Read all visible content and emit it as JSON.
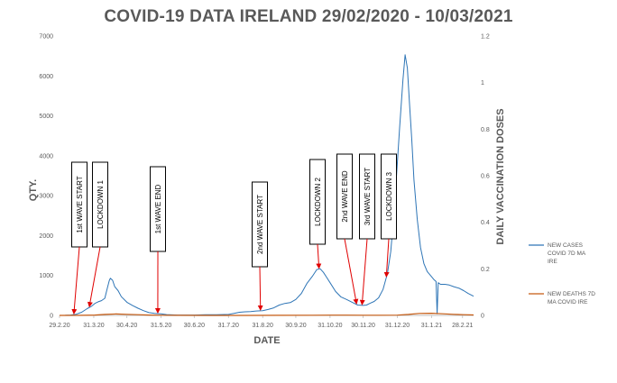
{
  "chart_data": {
    "type": "line",
    "title": "COVID-19 DATA IRELAND 29/02/2020 - 10/03/2021",
    "xlabel": "DATE",
    "ylabel": "QTY.",
    "y2label": "DAILY VACCINATION DOSES",
    "ylim": [
      0,
      7000
    ],
    "y2lim": [
      0,
      1.2
    ],
    "yticks": [
      "0",
      "1000",
      "2000",
      "3000",
      "4000",
      "5000",
      "6000",
      "7000"
    ],
    "y2ticks": [
      "0",
      "0.2",
      "0.4",
      "0.6",
      "0.8",
      "1",
      "1.2"
    ],
    "x_range": [
      "2020-02-29",
      "2021-03-10"
    ],
    "xticks": [
      {
        "label": "29.2.20",
        "date": "2020-02-29"
      },
      {
        "label": "31.3.20",
        "date": "2020-03-31"
      },
      {
        "label": "30.4.20",
        "date": "2020-04-30"
      },
      {
        "label": "31.5.20",
        "date": "2020-05-31"
      },
      {
        "label": "30.6.20",
        "date": "2020-06-30"
      },
      {
        "label": "31.7.20",
        "date": "2020-07-31"
      },
      {
        "label": "31.8.20",
        "date": "2020-08-31"
      },
      {
        "label": "30.9.20",
        "date": "2020-09-30"
      },
      {
        "label": "31.10.20",
        "date": "2020-10-31"
      },
      {
        "label": "30.11.20",
        "date": "2020-11-30"
      },
      {
        "label": "31.12.20",
        "date": "2020-12-31"
      },
      {
        "label": "31.1.21",
        "date": "2021-01-31"
      },
      {
        "label": "28.2.21",
        "date": "2021-02-28"
      }
    ],
    "grid": false,
    "legend_position": "right",
    "series": [
      {
        "name": "NEW CASES COVID 7D MA IRE",
        "color": "#2e75b6",
        "points": [
          [
            "2020-02-29",
            0
          ],
          [
            "2020-03-05",
            3
          ],
          [
            "2020-03-10",
            10
          ],
          [
            "2020-03-15",
            30
          ],
          [
            "2020-03-20",
            80
          ],
          [
            "2020-03-25",
            170
          ],
          [
            "2020-03-29",
            230
          ],
          [
            "2020-04-01",
            300
          ],
          [
            "2020-04-04",
            340
          ],
          [
            "2020-04-07",
            370
          ],
          [
            "2020-04-10",
            430
          ],
          [
            "2020-04-12",
            650
          ],
          [
            "2020-04-14",
            870
          ],
          [
            "2020-04-15",
            930
          ],
          [
            "2020-04-17",
            880
          ],
          [
            "2020-04-19",
            720
          ],
          [
            "2020-04-22",
            620
          ],
          [
            "2020-04-25",
            470
          ],
          [
            "2020-04-30",
            330
          ],
          [
            "2020-05-05",
            250
          ],
          [
            "2020-05-10",
            180
          ],
          [
            "2020-05-15",
            120
          ],
          [
            "2020-05-20",
            70
          ],
          [
            "2020-05-25",
            50
          ],
          [
            "2020-05-31",
            40
          ],
          [
            "2020-06-05",
            20
          ],
          [
            "2020-06-10",
            14
          ],
          [
            "2020-06-15",
            10
          ],
          [
            "2020-06-20",
            9
          ],
          [
            "2020-06-30",
            9
          ],
          [
            "2020-07-10",
            15
          ],
          [
            "2020-07-20",
            15
          ],
          [
            "2020-07-31",
            25
          ],
          [
            "2020-08-05",
            50
          ],
          [
            "2020-08-10",
            80
          ],
          [
            "2020-08-15",
            90
          ],
          [
            "2020-08-20",
            95
          ],
          [
            "2020-08-25",
            110
          ],
          [
            "2020-08-31",
            120
          ],
          [
            "2020-09-05",
            150
          ],
          [
            "2020-09-10",
            190
          ],
          [
            "2020-09-15",
            260
          ],
          [
            "2020-09-20",
            300
          ],
          [
            "2020-09-25",
            320
          ],
          [
            "2020-09-30",
            400
          ],
          [
            "2020-10-05",
            550
          ],
          [
            "2020-10-10",
            800
          ],
          [
            "2020-10-15",
            980
          ],
          [
            "2020-10-19",
            1150
          ],
          [
            "2020-10-22",
            1170
          ],
          [
            "2020-10-25",
            1080
          ],
          [
            "2020-10-28",
            950
          ],
          [
            "2020-10-31",
            820
          ],
          [
            "2020-11-05",
            600
          ],
          [
            "2020-11-10",
            460
          ],
          [
            "2020-11-15",
            400
          ],
          [
            "2020-11-20",
            330
          ],
          [
            "2020-11-25",
            260
          ],
          [
            "2020-11-30",
            250
          ],
          [
            "2020-12-03",
            260
          ],
          [
            "2020-12-06",
            300
          ],
          [
            "2020-12-10",
            350
          ],
          [
            "2020-12-14",
            440
          ],
          [
            "2020-12-18",
            650
          ],
          [
            "2020-12-22",
            1050
          ],
          [
            "2020-12-25",
            1600
          ],
          [
            "2020-12-28",
            2600
          ],
          [
            "2020-12-30",
            3400
          ],
          [
            "2021-01-02",
            4700
          ],
          [
            "2021-01-05",
            5900
          ],
          [
            "2021-01-07",
            6530
          ],
          [
            "2021-01-09",
            6200
          ],
          [
            "2021-01-11",
            5300
          ],
          [
            "2021-01-13",
            4400
          ],
          [
            "2021-01-15",
            3400
          ],
          [
            "2021-01-18",
            2400
          ],
          [
            "2021-01-21",
            1700
          ],
          [
            "2021-01-24",
            1300
          ],
          [
            "2021-01-27",
            1100
          ],
          [
            "2021-01-30",
            1000
          ],
          [
            "2021-02-02",
            900
          ],
          [
            "2021-02-04",
            850
          ],
          [
            "2021-02-05",
            40
          ],
          [
            "2021-02-06",
            820
          ],
          [
            "2021-02-08",
            780
          ],
          [
            "2021-02-12",
            780
          ],
          [
            "2021-02-16",
            760
          ],
          [
            "2021-02-20",
            720
          ],
          [
            "2021-02-25",
            680
          ],
          [
            "2021-03-01",
            620
          ],
          [
            "2021-03-05",
            550
          ],
          [
            "2021-03-10",
            480
          ]
        ]
      },
      {
        "name": "NEW DEATHS 7D MA COVID IRE",
        "color": "#c55a11",
        "points": [
          [
            "2020-02-29",
            0
          ],
          [
            "2020-03-20",
            2
          ],
          [
            "2020-04-01",
            10
          ],
          [
            "2020-04-10",
            25
          ],
          [
            "2020-04-20",
            35
          ],
          [
            "2020-04-30",
            28
          ],
          [
            "2020-05-10",
            18
          ],
          [
            "2020-05-20",
            10
          ],
          [
            "2020-05-31",
            5
          ],
          [
            "2020-06-15",
            2
          ],
          [
            "2020-07-15",
            1
          ],
          [
            "2020-08-15",
            1
          ],
          [
            "2020-09-15",
            3
          ],
          [
            "2020-10-15",
            5
          ],
          [
            "2020-10-31",
            7
          ],
          [
            "2020-11-15",
            6
          ],
          [
            "2020-11-30",
            5
          ],
          [
            "2020-12-15",
            5
          ],
          [
            "2020-12-31",
            7
          ],
          [
            "2021-01-10",
            25
          ],
          [
            "2021-01-20",
            50
          ],
          [
            "2021-01-31",
            55
          ],
          [
            "2021-02-10",
            40
          ],
          [
            "2021-02-20",
            28
          ],
          [
            "2021-03-01",
            18
          ],
          [
            "2021-03-10",
            12
          ]
        ]
      }
    ],
    "annotations": [
      {
        "text": "1st WAVE START",
        "target": "2020-03-13"
      },
      {
        "text": "LOCKDOWN 1",
        "target": "2020-03-27"
      },
      {
        "text": "1st WAVE END",
        "target": "2020-05-28"
      },
      {
        "text": "2nd  WAVE START",
        "target": "2020-08-29"
      },
      {
        "text": "LOCKDOWN 2",
        "target": "2020-10-21"
      },
      {
        "text": "2nd WAVE END",
        "target": "2020-11-24"
      },
      {
        "text": "3rd  WAVE START",
        "target": "2020-11-29"
      },
      {
        "text": "LOCKDOWN 3",
        "target": "2020-12-21"
      }
    ]
  }
}
